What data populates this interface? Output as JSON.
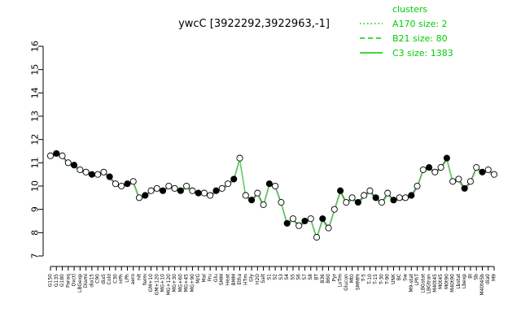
{
  "chart_data": {
    "type": "line",
    "title": "ywcC [3922292,3922963,-1]",
    "xlabel": "",
    "ylabel": "",
    "ylim": [
      7,
      16
    ],
    "yticks": [
      7,
      8,
      9,
      10,
      11,
      12,
      13,
      14,
      15,
      16
    ],
    "grid": false,
    "legend_position": "top-right",
    "legend_title": "clusters",
    "legend": [
      {
        "label": "A170 size: 2",
        "style": "dotted"
      },
      {
        "label": "B21 size: 80",
        "style": "dashed"
      },
      {
        "label": "C3 size: 1383",
        "style": "solid"
      }
    ],
    "colors": {
      "series": "#66dd66",
      "legend": "#00cc00",
      "point_open": "#ffffff",
      "point_filled": "#000000"
    },
    "categories": [
      "G150",
      "G135",
      "G180",
      "Paraq",
      "Oxctl",
      "LBGexp",
      "Diami",
      "dia15",
      "C90",
      "dia5",
      "Cold",
      "C30",
      "HPh",
      "LPh",
      "aero",
      "nit",
      "ferm",
      "GM+10",
      "GM+120",
      "MG+10",
      "MG+120",
      "MG+30",
      "MG+60",
      "MG+45",
      "MG+90",
      "M/G",
      "Mal",
      "Fru",
      "Glu",
      "SMM",
      "Heat",
      "BMM",
      "Etha",
      "HTm",
      "Gly",
      "H2O",
      "Salt",
      "S1",
      "S2",
      "S3",
      "S4",
      "S5",
      "S6",
      "S7",
      "S8",
      "BT",
      "B36",
      "B60",
      "Pyr",
      "LoTm",
      "Glucon",
      "Mt0",
      "SMMPr",
      "T-5",
      "T-10",
      "T-15",
      "T-30",
      "T-90",
      "UNK",
      "BC",
      "Sw",
      "M9-stat",
      "LPhT",
      "LBGstat",
      "LBGtran",
      "M40t45",
      "M0t45",
      "M0t90",
      "M40t90",
      "Lbstat",
      "Lbexp",
      "BI",
      "Sb",
      "M40t45b",
      "dia0",
      "M9"
    ],
    "series": [
      {
        "values": [
          11.3,
          11.4,
          11.3,
          11.0,
          10.9,
          10.7,
          10.6,
          10.5,
          10.5,
          10.6,
          10.4,
          10.1,
          10.0,
          10.1,
          10.2,
          9.5,
          9.6,
          9.8,
          9.9,
          9.8,
          10.0,
          9.9,
          9.8,
          10.0,
          9.8,
          9.7,
          9.7,
          9.6,
          9.8,
          9.9,
          10.1,
          10.3,
          11.2,
          9.6,
          9.4,
          9.7,
          9.2,
          10.1,
          10.0,
          9.3,
          8.4,
          8.6,
          8.3,
          8.5,
          8.6,
          7.8,
          8.6,
          8.2,
          9.0,
          9.8,
          9.3,
          9.5,
          9.3,
          9.6,
          9.8,
          9.5,
          9.3,
          9.7,
          9.4,
          9.5,
          9.5,
          9.6,
          10.0,
          10.7,
          10.8,
          10.6,
          10.8,
          11.2,
          10.2,
          10.3,
          9.9,
          10.2,
          10.8,
          10.6,
          10.7,
          10.5
        ]
      }
    ]
  }
}
